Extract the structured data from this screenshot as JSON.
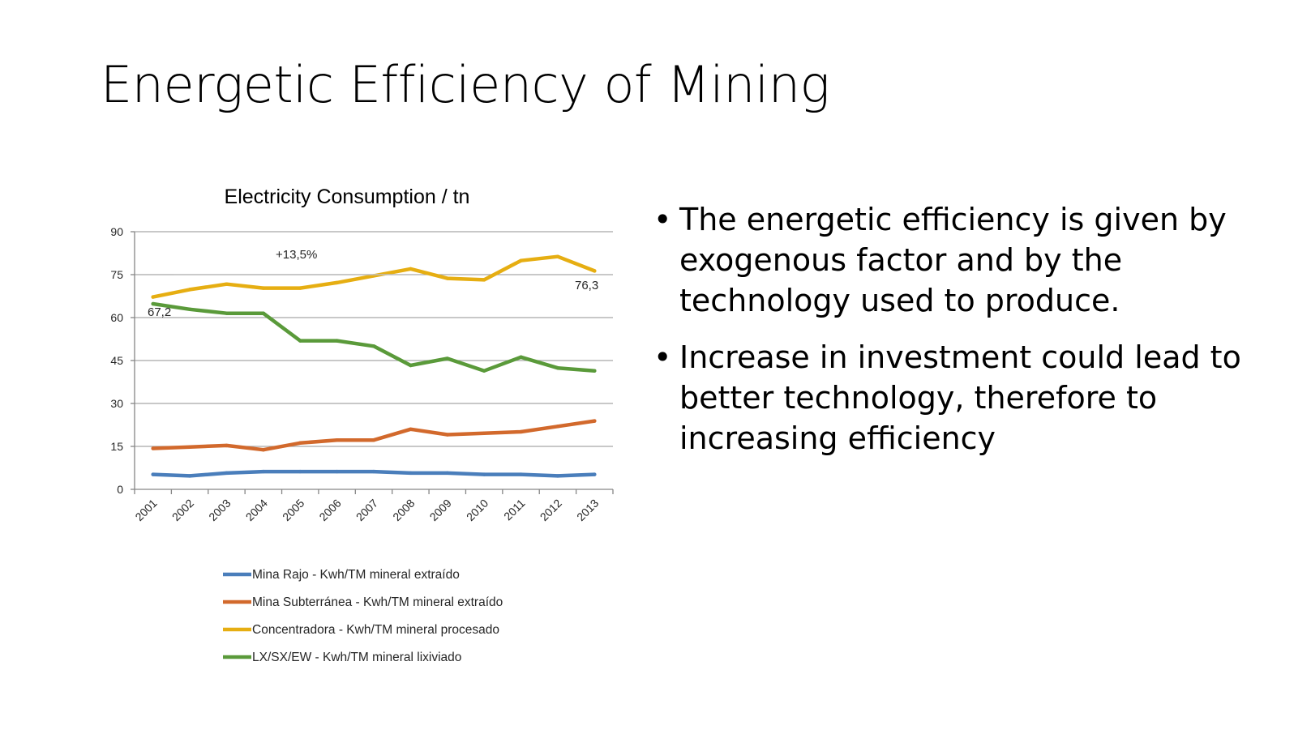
{
  "slide": {
    "title": "Energetic Efficiency of Mining",
    "bullets": [
      "The energetic efficiency is given by exogenous factor and by the technology used to produce.",
      "Increase in investment could lead to better technology, therefore to increasing efficiency"
    ]
  },
  "chart_data": {
    "type": "line",
    "title": "Electricity Consumption / tn",
    "categories": [
      "2001",
      "2002",
      "2003",
      "2004",
      "2005",
      "2006",
      "2007",
      "2008",
      "2009",
      "2010",
      "2011",
      "2012",
      "2013"
    ],
    "ylim": [
      0,
      90
    ],
    "yticks": [
      0,
      15,
      30,
      45,
      60,
      75,
      90
    ],
    "grid": true,
    "legend_position": "bottom",
    "series": [
      {
        "name": "Mina Rajo - Kwh/TM mineral extraído",
        "color": "#4a7ebb",
        "values": [
          5.2,
          4.7,
          5.7,
          6.2,
          6.2,
          6.2,
          6.2,
          5.7,
          5.7,
          5.2,
          5.2,
          4.7,
          5.2
        ]
      },
      {
        "name": "Mina Subterránea - Kwh/TM mineral extraído",
        "color": "#d2692c",
        "values": [
          14.3,
          14.8,
          15.3,
          13.8,
          16.2,
          17.2,
          17.2,
          21.0,
          19.1,
          19.6,
          20.1,
          22.0,
          23.9
        ]
      },
      {
        "name": "Concentradora - Kwh/TM mineral procesado",
        "color": "#e6ae12",
        "values": [
          67.2,
          69.8,
          71.7,
          70.3,
          70.3,
          72.2,
          74.6,
          77.0,
          73.7,
          73.2,
          79.9,
          81.3,
          76.3
        ]
      },
      {
        "name": "LX/SX/EW - Kwh/TM mineral lixiviado",
        "color": "#5a9a3a",
        "values": [
          64.8,
          62.9,
          61.5,
          61.5,
          51.9,
          51.9,
          50.0,
          43.3,
          45.7,
          41.4,
          46.2,
          42.4,
          41.4
        ]
      }
    ],
    "annotations": [
      "+13,5%",
      "67,2",
      "76,3"
    ]
  }
}
